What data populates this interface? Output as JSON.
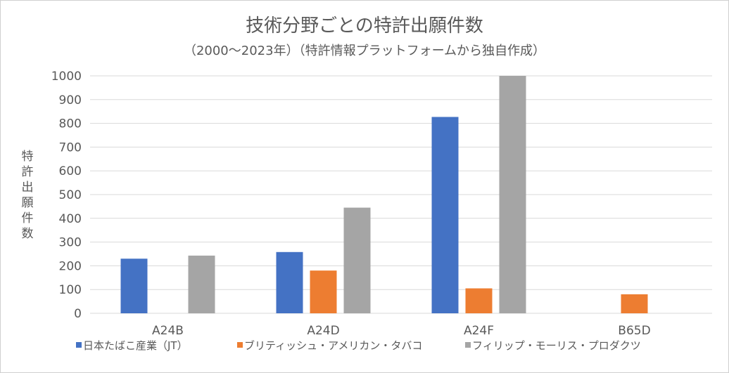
{
  "chart_data": {
    "type": "bar",
    "title": "技術分野ごとの特許出願件数",
    "subtitle": "（2000～2023年）（特許情報プラットフォームから独自作成）",
    "ylabel": "特許出願件数",
    "xlabel": "",
    "categories": [
      "A24B",
      "A24D",
      "A24F",
      "B65D"
    ],
    "series": [
      {
        "name": "日本たばこ産業（JT）",
        "color": "#4472c4",
        "values": [
          230,
          258,
          827,
          0
        ]
      },
      {
        "name": "ブリティッシュ・アメリカン・タバコ",
        "color": "#ed7d31",
        "values": [
          0,
          180,
          105,
          80
        ]
      },
      {
        "name": "フィリップ・モーリス・プロダクツ",
        "color": "#a5a5a5",
        "values": [
          243,
          445,
          1000,
          0
        ]
      }
    ],
    "ylim": [
      0,
      1000
    ],
    "yticks": [
      0,
      100,
      200,
      300,
      400,
      500,
      600,
      700,
      800,
      900,
      1000
    ],
    "grid": true,
    "legend": "bottom"
  }
}
